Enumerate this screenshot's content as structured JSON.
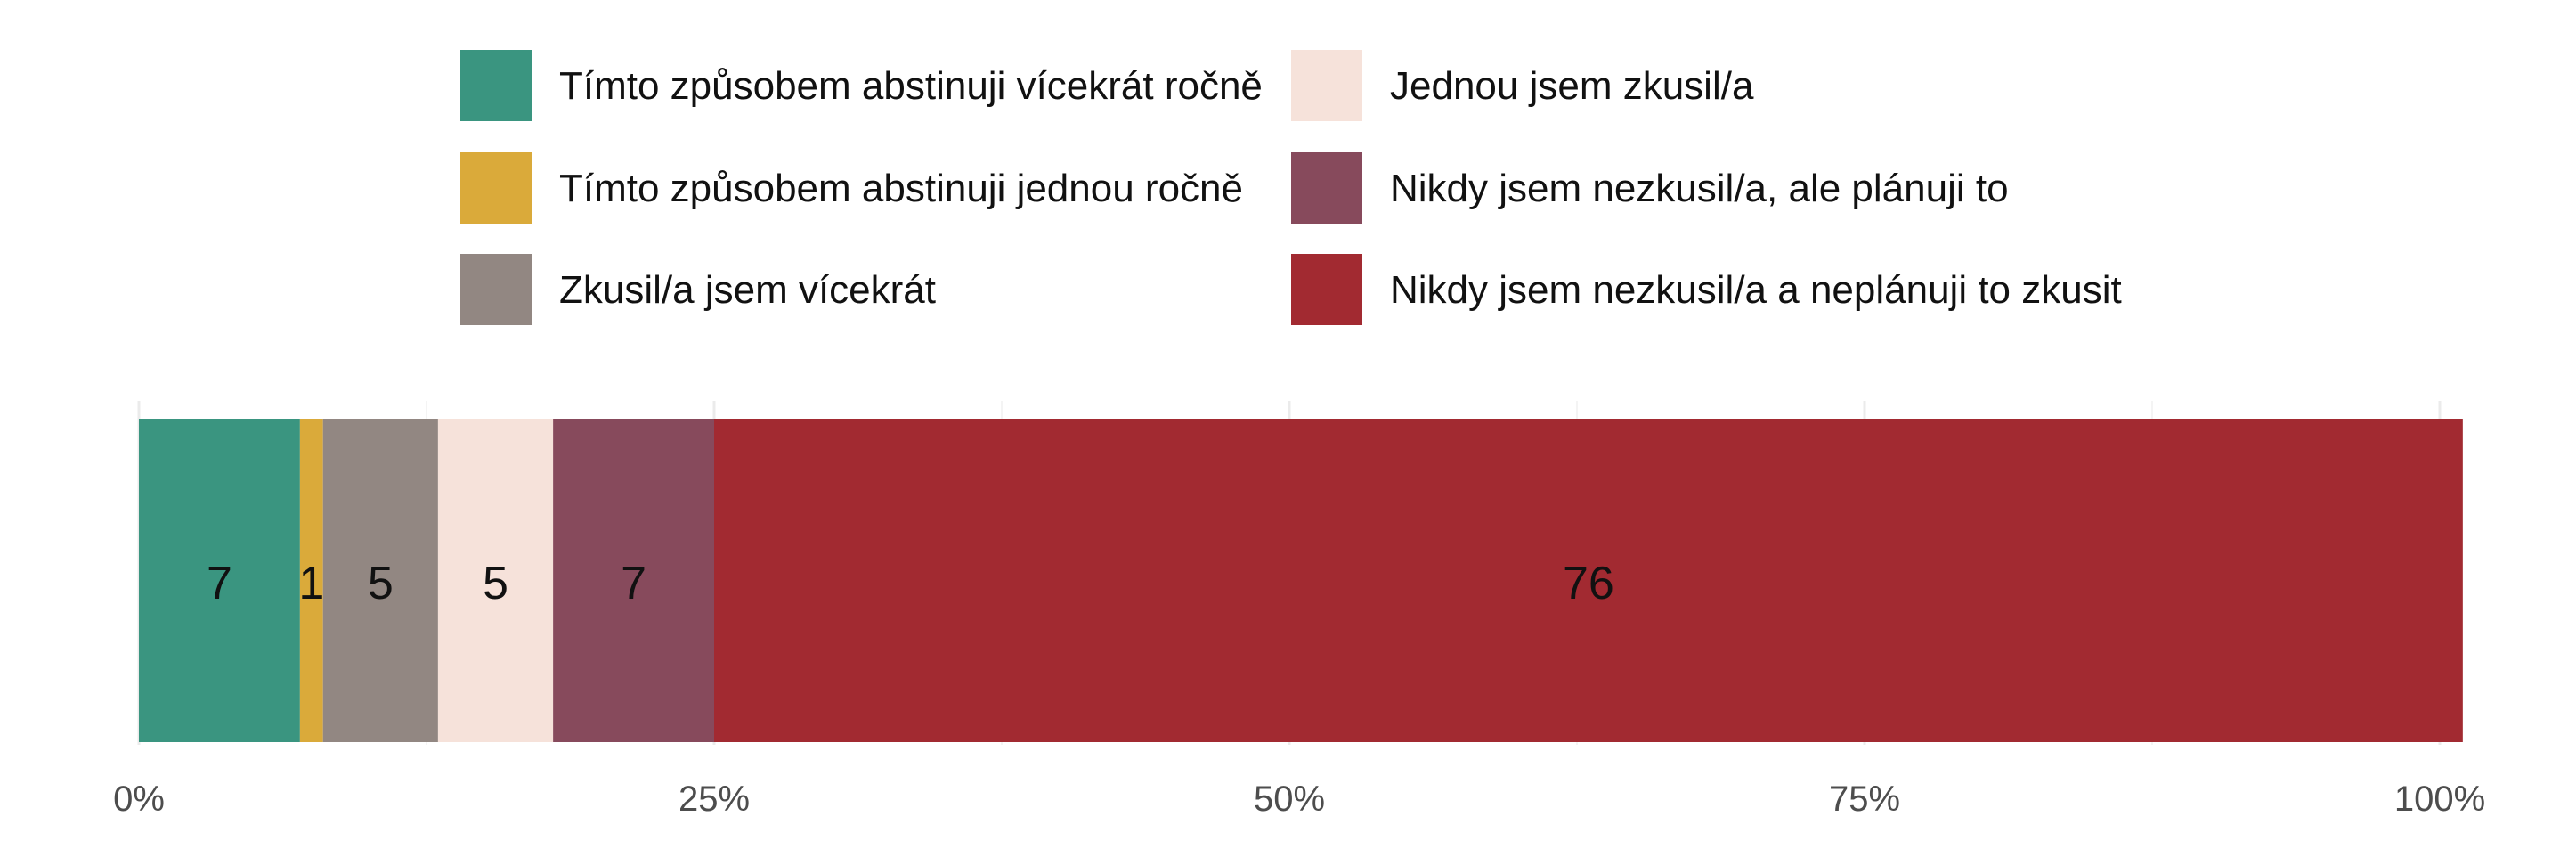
{
  "chart_data": {
    "type": "bar",
    "orientation": "horizontal",
    "stacked": true,
    "title": "",
    "xlabel": "",
    "ylabel": "",
    "xlim": [
      0,
      100
    ],
    "x_ticks": [
      0,
      25,
      50,
      75,
      100
    ],
    "x_tick_labels": [
      "0%",
      "25%",
      "50%",
      "75%",
      "100%"
    ],
    "grid": true,
    "legend_position": "top",
    "categories": [
      ""
    ],
    "series": [
      {
        "name": "Tímto způsobem abstinuji vícekrát ročně",
        "values": [
          7
        ],
        "label": "7",
        "color": "#3A9580"
      },
      {
        "name": "Tímto způsobem abstinuji jednou ročně",
        "values": [
          1
        ],
        "label": "1",
        "color": "#DAAA3A"
      },
      {
        "name": "Zkusil/a jsem vícekrát",
        "values": [
          5
        ],
        "label": "5",
        "color": "#928782"
      },
      {
        "name": "Jednou jsem zkusil/a",
        "values": [
          5
        ],
        "label": "5",
        "color": "#F6E2DA"
      },
      {
        "name": "Nikdy jsem nezkusil/a, ale plánuji to",
        "values": [
          7
        ],
        "label": "7",
        "color": "#874A5C"
      },
      {
        "name": "Nikdy jsem nezkusil/a a neplánuji to zkusit",
        "values": [
          76
        ],
        "label": "76",
        "color": "#A22A31"
      }
    ]
  }
}
